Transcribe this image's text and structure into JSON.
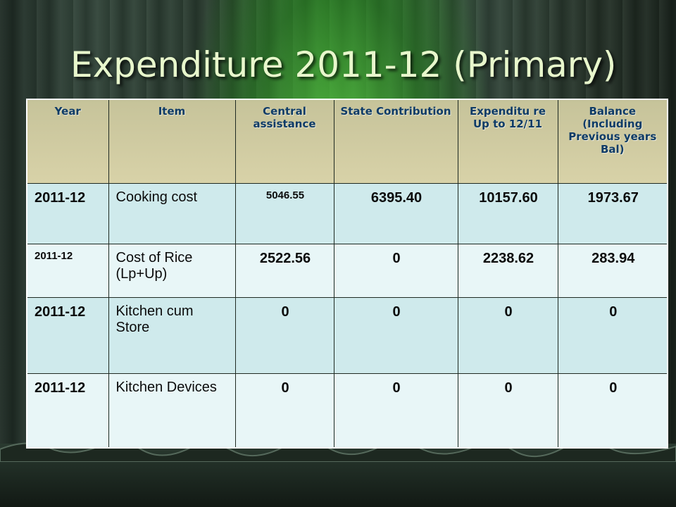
{
  "title": "Expenditure 2011-12 (Primary)",
  "table": {
    "headers": [
      "Year",
      "Item",
      "Central assistance",
      "State Contribution",
      "Expenditu re Up to 12/11",
      "Balance (Including Previous years Bal)"
    ],
    "rows": [
      {
        "year": "2011-12",
        "item": "Cooking cost",
        "central": "5046.55",
        "state": "6395.40",
        "expenditure": "10157.60",
        "balance": "1973.67"
      },
      {
        "year": "2011-12",
        "item": "Cost of Rice (Lp+Up)",
        "central": "2522.56",
        "state": "0",
        "expenditure": "2238.62",
        "balance": "283.94"
      },
      {
        "year": "2011-12",
        "item": "Kitchen cum Store",
        "central": "0",
        "state": "0",
        "expenditure": "0",
        "balance": "0"
      },
      {
        "year": "2011-12",
        "item": "Kitchen Devices",
        "central": "0",
        "state": "0",
        "expenditure": "0",
        "balance": "0"
      }
    ]
  }
}
